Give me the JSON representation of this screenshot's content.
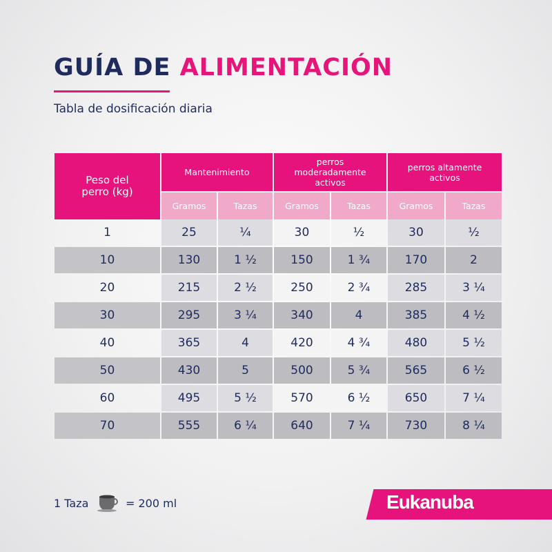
{
  "header": {
    "title_dark": "GUÍA DE",
    "title_pink": "ALIMENTACIÓN",
    "subtitle": "Tabla de dosificación diaria"
  },
  "table": {
    "corner": "Peso del perro (kg)",
    "groups": [
      "Mantenimiento",
      "perros moderadamente activos",
      "perros altamente activos"
    ],
    "subheaders": [
      "Gramos",
      "Tazas",
      "Gramos",
      "Tazas",
      "Gramos",
      "Tazas"
    ],
    "rows": [
      [
        "1",
        "25",
        "¼",
        "30",
        "½",
        "30",
        "½"
      ],
      [
        "10",
        "130",
        "1 ½",
        "150",
        "1 ¾",
        "170",
        "2"
      ],
      [
        "20",
        "215",
        "2 ½",
        "250",
        "2 ¾",
        "285",
        "3 ¼"
      ],
      [
        "30",
        "295",
        "3 ¼",
        "340",
        "4",
        "385",
        "4 ½"
      ],
      [
        "40",
        "365",
        "4",
        "420",
        "4 ¾",
        "480",
        "5 ½"
      ],
      [
        "50",
        "430",
        "5",
        "500",
        "5 ¾",
        "565",
        "6 ½"
      ],
      [
        "60",
        "495",
        "5 ½",
        "570",
        "6 ½",
        "650",
        "7 ¼"
      ],
      [
        "70",
        "555",
        "6 ¼",
        "640",
        "7 ¼",
        "730",
        "8 ¼"
      ]
    ]
  },
  "footer": {
    "unit": "1 Taza",
    "equals": "= 200 ml",
    "brand": "Eukanuba"
  }
}
